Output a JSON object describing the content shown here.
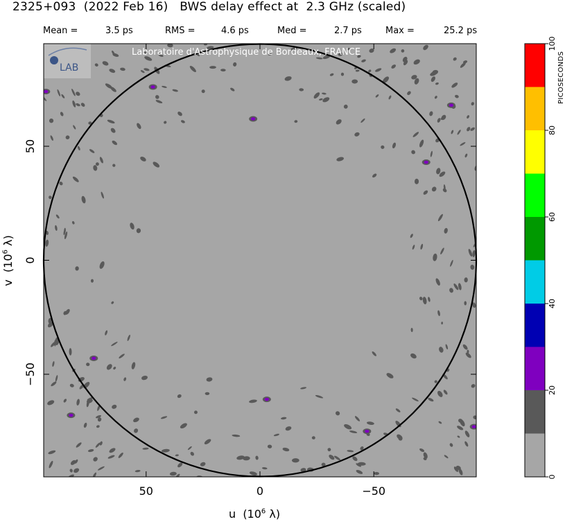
{
  "header": {
    "title": "2325+093  (2022 Feb 16)   BWS delay effect at  2.3 GHz (scaled)",
    "stats": [
      {
        "label": "Mean =",
        "value": "3.5 ps"
      },
      {
        "label": "RMS =",
        "value": "4.6 ps"
      },
      {
        "label": "Med =",
        "value": "2.7 ps"
      },
      {
        "label": "Max =",
        "value": "25.2 ps"
      }
    ]
  },
  "logo": {
    "text": "Laboratoire d'Astrophysique de Bordeaux, FRANCE",
    "mark": "LAB"
  },
  "chart_data": {
    "type": "heatmap",
    "x": {
      "label": "u",
      "unit": "(10",
      "unit_exp": "6",
      "unit_sym": "λ)",
      "range": [
        95,
        -95
      ],
      "ticks": [
        50,
        0,
        -50
      ]
    },
    "y": {
      "label": "v",
      "unit": "(10",
      "unit_exp": "6",
      "unit_sym": "λ)",
      "range": [
        -95,
        95
      ],
      "ticks": [
        50,
        0,
        -50
      ]
    },
    "tick_labels": {
      "x": [
        "50",
        "0",
        "−50"
      ],
      "y": [
        "50",
        "0",
        "−50"
      ]
    },
    "circle_radius": 95,
    "colorbar": {
      "title": "PICOSECONDS",
      "levels": [
        0,
        10,
        20,
        30,
        40,
        50,
        60,
        70,
        80,
        90,
        100
      ],
      "colors": [
        "#a6a6a6",
        "#595959",
        "#7f00bf",
        "#0000b3",
        "#00cce6",
        "#009900",
        "#00ff00",
        "#ffff00",
        "#ffbf00",
        "#ff0000"
      ],
      "tick_values": [
        0,
        20,
        40,
        60,
        80,
        100
      ],
      "tick_labels": [
        "0",
        "20",
        "40",
        "60",
        "80",
        "100"
      ]
    },
    "hotspots": [
      {
        "u": 3,
        "v": 62
      },
      {
        "u": -3,
        "v": -61
      },
      {
        "u": 47,
        "v": 76
      },
      {
        "u": -47,
        "v": -75
      },
      {
        "u": 73,
        "v": -43
      },
      {
        "u": -73,
        "v": 43
      },
      {
        "u": 83,
        "v": -68
      },
      {
        "u": -84,
        "v": 68
      },
      {
        "u": 94,
        "v": 74
      },
      {
        "u": -94,
        "v": -73
      }
    ],
    "background_level": 5,
    "blob_level": 15
  }
}
